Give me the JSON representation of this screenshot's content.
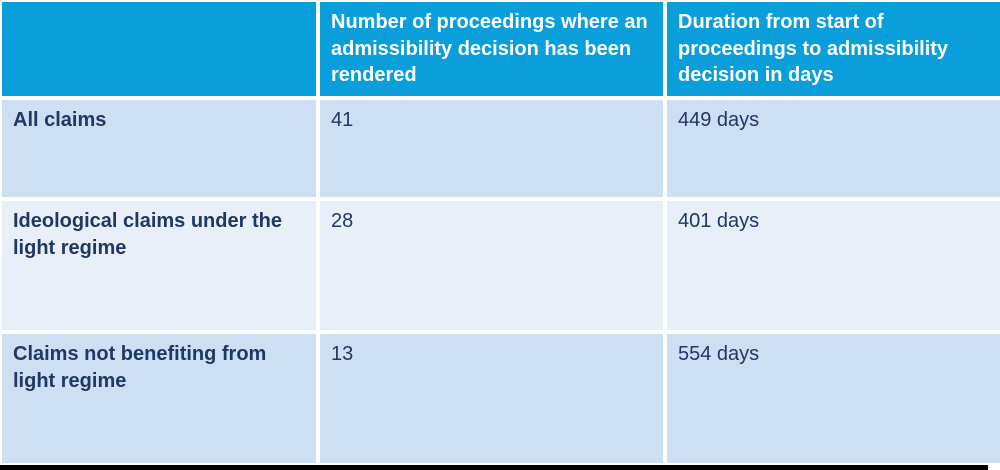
{
  "table": {
    "header": {
      "empty": "",
      "col_proceedings": "Number of proceedings where an admissibility decision has been rendered",
      "col_duration": "Duration from start of proceedings to admissibility decision in days"
    },
    "rows": [
      {
        "label": "All claims",
        "proceedings": "41",
        "duration": "449 days"
      },
      {
        "label": "Ideological claims under the light regime",
        "proceedings": "28",
        "duration": "401 days"
      },
      {
        "label": "Claims not benefiting from light regime",
        "proceedings": "13",
        "duration": "554 days"
      }
    ],
    "colors": {
      "header_bg": "#0a9edb",
      "header_text": "#ffffff",
      "row_bg": "#cddff2",
      "row_alt_bg": "#e9eff8",
      "body_text": "#1f3864",
      "cell_gap": "#ffffff",
      "bottom_bar": "#000000"
    }
  },
  "chart_data": {
    "type": "table",
    "columns": [
      "",
      "Number of proceedings where an admissibility decision has been rendered",
      "Duration from start of proceedings to admissibility decision in days"
    ],
    "rows": [
      [
        "All claims",
        41,
        "449 days"
      ],
      [
        "Ideological claims under the light regime",
        28,
        "401 days"
      ],
      [
        "Claims not benefiting from light regime",
        13,
        "554 days"
      ]
    ]
  }
}
